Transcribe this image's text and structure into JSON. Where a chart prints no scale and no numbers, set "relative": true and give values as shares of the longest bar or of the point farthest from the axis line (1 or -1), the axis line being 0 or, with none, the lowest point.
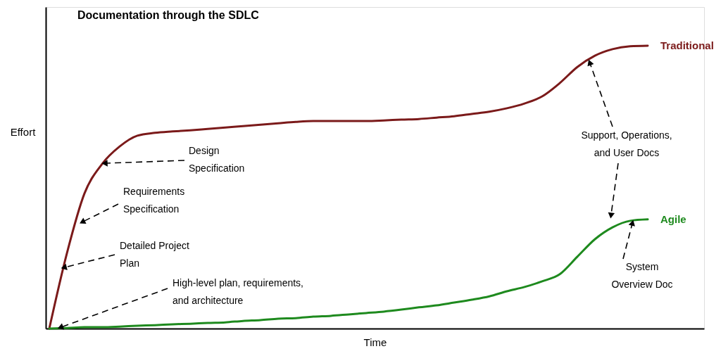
{
  "chart_data": {
    "type": "line",
    "title": "Documentation through the SDLC",
    "xlabel": "Time",
    "ylabel": "Effort",
    "relative": true,
    "legend": false,
    "grid": false,
    "marker": "none",
    "line_style": "solid",
    "categories": [
      null,
      null,
      null,
      null,
      null,
      null,
      null,
      null,
      null,
      null,
      null,
      null,
      null,
      null,
      null,
      null,
      null,
      null,
      null,
      null,
      null,
      null,
      null,
      null,
      null,
      null,
      null,
      null,
      null,
      null,
      null,
      null,
      null,
      null,
      null
    ],
    "series": [
      {
        "name": "Traditional",
        "color": "#7b1a1a",
        "values": [
          0,
          0.266,
          0.478,
          0.582,
          0.644,
          0.682,
          0.692,
          0.697,
          0.701,
          0.706,
          0.711,
          0.716,
          0.721,
          0.726,
          0.731,
          0.734,
          0.734,
          0.734,
          0.734,
          0.736,
          0.739,
          0.741,
          0.746,
          0.751,
          0.759,
          0.767,
          0.779,
          0.796,
          0.821,
          0.868,
          0.925,
          0.965,
          0.988,
          0.998,
          1
        ]
      },
      {
        "name": "Agile",
        "color": "#1e8a1e",
        "values": [
          0,
          0.002,
          0.005,
          0.005,
          0.007,
          0.01,
          0.012,
          0.015,
          0.017,
          0.02,
          0.022,
          0.027,
          0.03,
          0.035,
          0.037,
          0.042,
          0.045,
          0.05,
          0.055,
          0.06,
          0.067,
          0.075,
          0.082,
          0.092,
          0.102,
          0.114,
          0.132,
          0.147,
          0.167,
          0.192,
          0.254,
          0.316,
          0.358,
          0.381,
          0.386
        ]
      }
    ],
    "annotations": [
      "Design\nSpecification",
      "Requirements\nSpecification",
      "Detailed Project\nPlan",
      "High-level plan, requirements,\nand architecture",
      "Support, Operations,\nand User Docs",
      "System\nOverview Doc"
    ]
  }
}
